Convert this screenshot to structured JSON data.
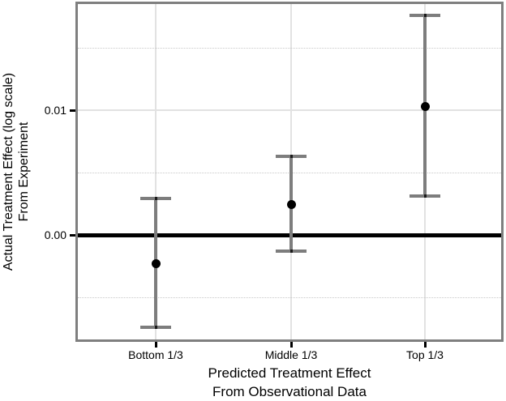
{
  "figure": {
    "x_axis_title_lines": [
      "Predicted Treatment Effect",
      "From Observational Data"
    ],
    "y_axis_title_lines": [
      "Actual Treatment Effect (log scale)",
      "From Experiment"
    ]
  },
  "chart_data": {
    "type": "scatter",
    "subtype": "pointrange_errorbar",
    "title": "",
    "xlabel": "Predicted Treatment Effect From Observational Data",
    "ylabel": "Actual Treatment Effect (log scale) From Experiment",
    "categories": [
      "Bottom 1/3",
      "Middle 1/3",
      "Top 1/3"
    ],
    "series": [
      {
        "name": "actual_treatment_effect",
        "points": [
          {
            "category": "Bottom 1/3",
            "estimate": -0.0023,
            "ci_low": -0.0074,
            "ci_high": 0.0029
          },
          {
            "category": "Middle 1/3",
            "estimate": 0.0025,
            "ci_low": -0.0013,
            "ci_high": 0.0063
          },
          {
            "category": "Top 1/3",
            "estimate": 0.0103,
            "ci_low": 0.0031,
            "ci_high": 0.0176
          }
        ]
      }
    ],
    "y_ticks": [
      {
        "label": "0.01",
        "value": 0.01
      },
      {
        "label": "0.00",
        "value": 0.0
      }
    ],
    "y_minor_gridlines": [
      0.015,
      0.005,
      -0.005
    ],
    "reference_line_y": 0.0,
    "ylim": [
      -0.0084,
      0.0187
    ],
    "grid": true,
    "legend": "none",
    "colors": {
      "point": "#000000",
      "errorbar": "#7d7d7d",
      "reference_line": "#000000",
      "panel_border": "#7f7f7f",
      "major_grid": "#e2e2e2",
      "minor_grid": "#c8c8c8",
      "text": "#000000",
      "background": "#ffffff"
    }
  }
}
